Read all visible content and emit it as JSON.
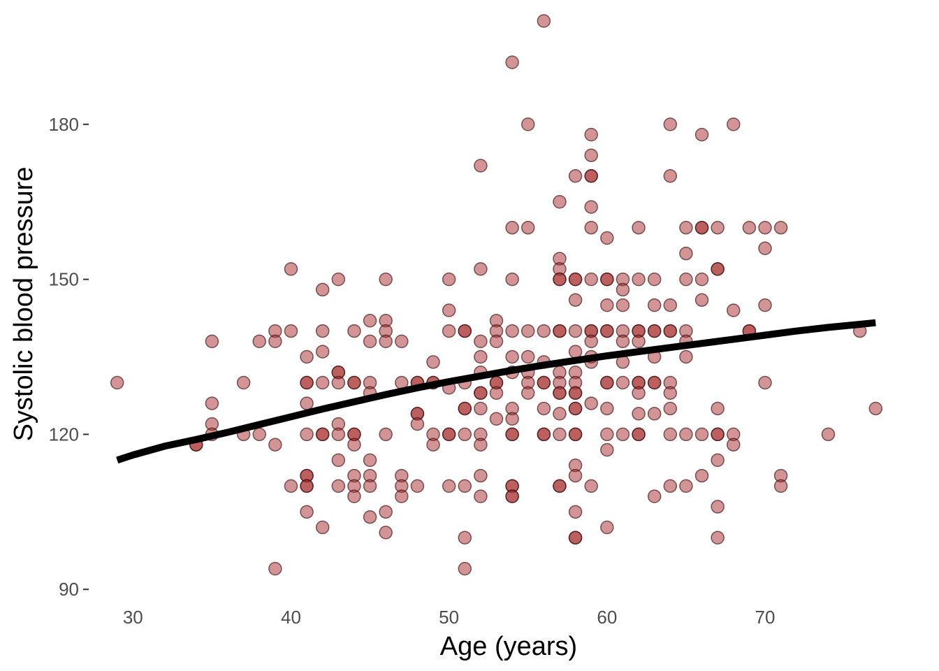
{
  "chart_data": {
    "type": "scatter",
    "title": "",
    "xlabel": "Age (years)",
    "ylabel": "Systolic blood pressure",
    "xlim": [
      27.6,
      78.4
    ],
    "ylim": [
      88,
      200
    ],
    "x_ticks": [
      30,
      40,
      50,
      60,
      70
    ],
    "y_ticks": [
      90,
      120,
      150,
      180
    ],
    "grid": false,
    "legend": "none",
    "colors": {
      "point_fill": "#a52a2a",
      "point_stroke": "#3a0d0d",
      "trend_line": "#000000",
      "axis_text": "#4d4d4d"
    },
    "points": [
      [
        29,
        130
      ],
      [
        34,
        118
      ],
      [
        34,
        118
      ],
      [
        35,
        138
      ],
      [
        35,
        126
      ],
      [
        35,
        122
      ],
      [
        35,
        120
      ],
      [
        37,
        130
      ],
      [
        37,
        120
      ],
      [
        38,
        138
      ],
      [
        38,
        120
      ],
      [
        39,
        140
      ],
      [
        39,
        138
      ],
      [
        39,
        118
      ],
      [
        39,
        94
      ],
      [
        40,
        152
      ],
      [
        40,
        140
      ],
      [
        40,
        110
      ],
      [
        41,
        135
      ],
      [
        41,
        130
      ],
      [
        41,
        130
      ],
      [
        41,
        126
      ],
      [
        41,
        120
      ],
      [
        41,
        112
      ],
      [
        41,
        112
      ],
      [
        41,
        110
      ],
      [
        41,
        110
      ],
      [
        41,
        105
      ],
      [
        42,
        148
      ],
      [
        42,
        140
      ],
      [
        42,
        136
      ],
      [
        42,
        130
      ],
      [
        42,
        120
      ],
      [
        42,
        120
      ],
      [
        42,
        102
      ],
      [
        43,
        150
      ],
      [
        43,
        132
      ],
      [
        43,
        132
      ],
      [
        43,
        130
      ],
      [
        43,
        122
      ],
      [
        43,
        120
      ],
      [
        43,
        115
      ],
      [
        43,
        110
      ],
      [
        44,
        140
      ],
      [
        44,
        130
      ],
      [
        44,
        130
      ],
      [
        44,
        120
      ],
      [
        44,
        120
      ],
      [
        44,
        118
      ],
      [
        44,
        112
      ],
      [
        44,
        110
      ],
      [
        44,
        108
      ],
      [
        45,
        142
      ],
      [
        45,
        138
      ],
      [
        45,
        130
      ],
      [
        45,
        128
      ],
      [
        45,
        115
      ],
      [
        45,
        112
      ],
      [
        45,
        110
      ],
      [
        45,
        104
      ],
      [
        46,
        150
      ],
      [
        46,
        142
      ],
      [
        46,
        140
      ],
      [
        46,
        138
      ],
      [
        46,
        120
      ],
      [
        46,
        105
      ],
      [
        46,
        101
      ],
      [
        47,
        138
      ],
      [
        47,
        130
      ],
      [
        47,
        112
      ],
      [
        47,
        110
      ],
      [
        47,
        108
      ],
      [
        48,
        130
      ],
      [
        48,
        130
      ],
      [
        48,
        124
      ],
      [
        48,
        124
      ],
      [
        48,
        122
      ],
      [
        48,
        110
      ],
      [
        49,
        134
      ],
      [
        49,
        130
      ],
      [
        49,
        130
      ],
      [
        49,
        120
      ],
      [
        49,
        118
      ],
      [
        50,
        150
      ],
      [
        50,
        144
      ],
      [
        50,
        140
      ],
      [
        50,
        129
      ],
      [
        50,
        120
      ],
      [
        50,
        120
      ],
      [
        50,
        110
      ],
      [
        51,
        140
      ],
      [
        51,
        140
      ],
      [
        51,
        130
      ],
      [
        51,
        125
      ],
      [
        51,
        125
      ],
      [
        51,
        120
      ],
      [
        51,
        110
      ],
      [
        51,
        100
      ],
      [
        51,
        94
      ],
      [
        52,
        172
      ],
      [
        52,
        152
      ],
      [
        52,
        138
      ],
      [
        52,
        135
      ],
      [
        52,
        132
      ],
      [
        52,
        128
      ],
      [
        52,
        128
      ],
      [
        52,
        125
      ],
      [
        52,
        120
      ],
      [
        52,
        118
      ],
      [
        52,
        112
      ],
      [
        52,
        108
      ],
      [
        53,
        142
      ],
      [
        53,
        140
      ],
      [
        53,
        138
      ],
      [
        53,
        130
      ],
      [
        53,
        130
      ],
      [
        53,
        128
      ],
      [
        53,
        123
      ],
      [
        54,
        192
      ],
      [
        54,
        160
      ],
      [
        54,
        150
      ],
      [
        54,
        140
      ],
      [
        54,
        135
      ],
      [
        54,
        132
      ],
      [
        54,
        125
      ],
      [
        54,
        123
      ],
      [
        54,
        120
      ],
      [
        54,
        120
      ],
      [
        54,
        110
      ],
      [
        54,
        110
      ],
      [
        54,
        108
      ],
      [
        54,
        108
      ],
      [
        55,
        180
      ],
      [
        55,
        160
      ],
      [
        55,
        140
      ],
      [
        55,
        135
      ],
      [
        55,
        132
      ],
      [
        55,
        130
      ],
      [
        55,
        128
      ],
      [
        56,
        200
      ],
      [
        56,
        140
      ],
      [
        56,
        134
      ],
      [
        56,
        130
      ],
      [
        56,
        130
      ],
      [
        56,
        125
      ],
      [
        56,
        120
      ],
      [
        56,
        120
      ],
      [
        57,
        165
      ],
      [
        57,
        154
      ],
      [
        57,
        152
      ],
      [
        57,
        150
      ],
      [
        57,
        150
      ],
      [
        57,
        140
      ],
      [
        57,
        140
      ],
      [
        57,
        132
      ],
      [
        57,
        130
      ],
      [
        57,
        128
      ],
      [
        57,
        128
      ],
      [
        57,
        124
      ],
      [
        57,
        120
      ],
      [
        57,
        110
      ],
      [
        57,
        110
      ],
      [
        58,
        170
      ],
      [
        58,
        150
      ],
      [
        58,
        150
      ],
      [
        58,
        146
      ],
      [
        58,
        140
      ],
      [
        58,
        136
      ],
      [
        58,
        132
      ],
      [
        58,
        130
      ],
      [
        58,
        128
      ],
      [
        58,
        128
      ],
      [
        58,
        125
      ],
      [
        58,
        125
      ],
      [
        58,
        120
      ],
      [
        58,
        120
      ],
      [
        58,
        114
      ],
      [
        58,
        112
      ],
      [
        58,
        105
      ],
      [
        58,
        100
      ],
      [
        58,
        100
      ],
      [
        59,
        178
      ],
      [
        59,
        174
      ],
      [
        59,
        170
      ],
      [
        59,
        170
      ],
      [
        59,
        164
      ],
      [
        59,
        160
      ],
      [
        59,
        150
      ],
      [
        59,
        140
      ],
      [
        59,
        140
      ],
      [
        59,
        138
      ],
      [
        59,
        135
      ],
      [
        59,
        134
      ],
      [
        59,
        126
      ],
      [
        59,
        110
      ],
      [
        60,
        158
      ],
      [
        60,
        150
      ],
      [
        60,
        150
      ],
      [
        60,
        145
      ],
      [
        60,
        140
      ],
      [
        60,
        140
      ],
      [
        60,
        130
      ],
      [
        60,
        130
      ],
      [
        60,
        125
      ],
      [
        60,
        120
      ],
      [
        60,
        117
      ],
      [
        60,
        102
      ],
      [
        61,
        150
      ],
      [
        61,
        148
      ],
      [
        61,
        145
      ],
      [
        61,
        140
      ],
      [
        61,
        138
      ],
      [
        61,
        134
      ],
      [
        61,
        130
      ],
      [
        61,
        120
      ],
      [
        62,
        160
      ],
      [
        62,
        150
      ],
      [
        62,
        140
      ],
      [
        62,
        140
      ],
      [
        62,
        138
      ],
      [
        62,
        130
      ],
      [
        62,
        130
      ],
      [
        62,
        128
      ],
      [
        62,
        124
      ],
      [
        62,
        120
      ],
      [
        62,
        120
      ],
      [
        63,
        150
      ],
      [
        63,
        145
      ],
      [
        63,
        140
      ],
      [
        63,
        140
      ],
      [
        63,
        135
      ],
      [
        63,
        130
      ],
      [
        63,
        130
      ],
      [
        63,
        124
      ],
      [
        63,
        108
      ],
      [
        64,
        180
      ],
      [
        64,
        170
      ],
      [
        64,
        145
      ],
      [
        64,
        140
      ],
      [
        64,
        140
      ],
      [
        64,
        130
      ],
      [
        64,
        128
      ],
      [
        64,
        125
      ],
      [
        64,
        120
      ],
      [
        64,
        110
      ],
      [
        65,
        160
      ],
      [
        65,
        155
      ],
      [
        65,
        150
      ],
      [
        65,
        140
      ],
      [
        65,
        138
      ],
      [
        65,
        135
      ],
      [
        65,
        120
      ],
      [
        65,
        110
      ],
      [
        66,
        178
      ],
      [
        66,
        160
      ],
      [
        66,
        160
      ],
      [
        66,
        150
      ],
      [
        66,
        146
      ],
      [
        66,
        120
      ],
      [
        66,
        112
      ],
      [
        67,
        160
      ],
      [
        67,
        152
      ],
      [
        67,
        152
      ],
      [
        67,
        125
      ],
      [
        67,
        120
      ],
      [
        67,
        120
      ],
      [
        67,
        115
      ],
      [
        67,
        106
      ],
      [
        67,
        100
      ],
      [
        68,
        180
      ],
      [
        68,
        144
      ],
      [
        68,
        120
      ],
      [
        68,
        118
      ],
      [
        69,
        160
      ],
      [
        69,
        140
      ],
      [
        69,
        140
      ],
      [
        70,
        160
      ],
      [
        70,
        156
      ],
      [
        70,
        145
      ],
      [
        70,
        130
      ],
      [
        71,
        160
      ],
      [
        71,
        112
      ],
      [
        71,
        110
      ],
      [
        74,
        120
      ],
      [
        76,
        140
      ],
      [
        77,
        125
      ]
    ],
    "trend_line": [
      [
        29,
        115
      ],
      [
        30,
        116
      ],
      [
        32,
        117.7
      ],
      [
        34,
        119
      ],
      [
        36,
        120.4
      ],
      [
        38,
        121.9
      ],
      [
        40,
        123.4
      ],
      [
        42,
        124.9
      ],
      [
        44,
        126.3
      ],
      [
        46,
        127.7
      ],
      [
        48,
        129
      ],
      [
        50,
        130.2
      ],
      [
        52,
        131.3
      ],
      [
        54,
        132.4
      ],
      [
        56,
        133.4
      ],
      [
        58,
        134.3
      ],
      [
        60,
        135.2
      ],
      [
        62,
        136
      ],
      [
        64,
        136.8
      ],
      [
        66,
        137.6
      ],
      [
        68,
        138.4
      ],
      [
        70,
        139.2
      ],
      [
        72,
        140
      ],
      [
        74,
        140.7
      ],
      [
        76,
        141.3
      ],
      [
        77,
        141.6
      ]
    ]
  }
}
